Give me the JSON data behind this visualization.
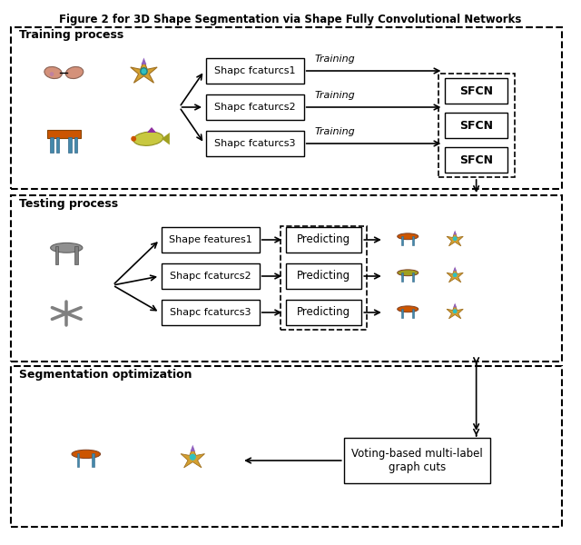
{
  "title": "Figure 2 for 3D Shape Segmentation via Shape Fully Convolutional Networks",
  "title_fontsize": 11,
  "bg_color": "#ffffff",
  "section1_label": "Training process",
  "section2_label": "Testing process",
  "section3_label": "Segmentation optimization",
  "training_boxes": [
    "Shapc fcaturcs1",
    "Shapc fcaturcs2",
    "Shapc fcaturcs3"
  ],
  "training_labels": [
    "Training",
    "Training",
    "Training"
  ],
  "sfcn_label": "SFCN",
  "testing_feature_boxes": [
    "Shape features1",
    "Shapc fcaturcs2",
    "Shapc fcaturcs3"
  ],
  "predicting_boxes": [
    "Predicting",
    "Predicting",
    "Predicting"
  ],
  "voting_box": "Voting-based multi-label\ngraph cuts",
  "box_facecolor": "#ffffff",
  "box_edgecolor": "#000000",
  "dashed_edgecolor": "#000000",
  "arrow_color": "#000000",
  "section_bg": "#ffffff",
  "section_border": "#000000"
}
